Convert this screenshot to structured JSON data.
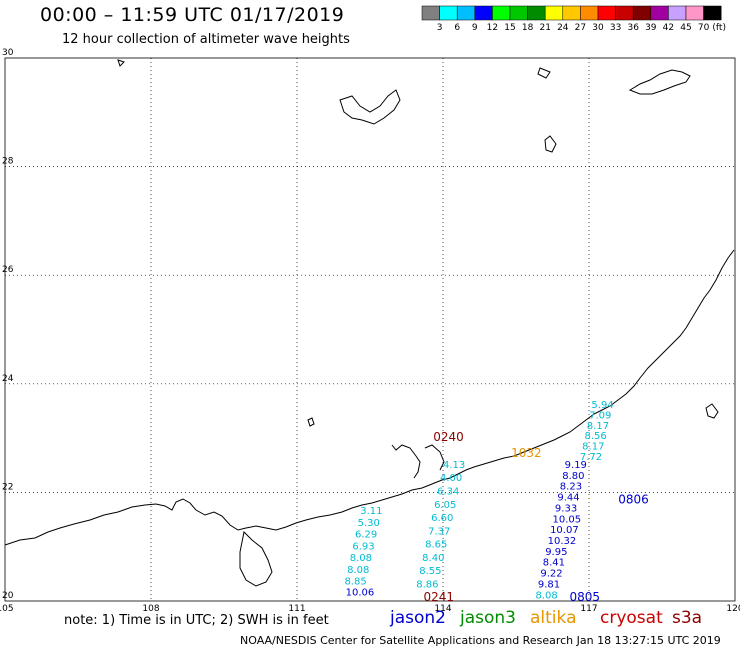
{
  "header": {
    "title": "00:00 – 11:59 UTC 01/17/2019",
    "subtitle": "12 hour collection of altimeter wave heights"
  },
  "legend": {
    "unit": "(ft)",
    "bins": [
      {
        "label": "3",
        "color": "#808080"
      },
      {
        "label": "6",
        "color": "#00ffff"
      },
      {
        "label": "9",
        "color": "#00bfff"
      },
      {
        "label": "12",
        "color": "#0000ff"
      },
      {
        "label": "15",
        "color": "#00ff00"
      },
      {
        "label": "18",
        "color": "#00c800"
      },
      {
        "label": "21",
        "color": "#008c00"
      },
      {
        "label": "24",
        "color": "#ffff00"
      },
      {
        "label": "27",
        "color": "#ffc800"
      },
      {
        "label": "30",
        "color": "#ff8c00"
      },
      {
        "label": "33",
        "color": "#ff0000"
      },
      {
        "label": "36",
        "color": "#c80000"
      },
      {
        "label": "39",
        "color": "#800000"
      },
      {
        "label": "42",
        "color": "#a000a0"
      },
      {
        "label": "45",
        "color": "#c8a0ff"
      },
      {
        "label": "70",
        "color": "#ff96c8"
      },
      {
        "label": "",
        "color": "#000000"
      }
    ]
  },
  "axes": {
    "lon_labels": [
      "105",
      "108",
      "111",
      "114",
      "117",
      "120"
    ],
    "lat_labels": [
      "20",
      "22",
      "24",
      "26",
      "28",
      "30"
    ]
  },
  "passes": [
    {
      "time": "0240",
      "color": "#8b0000",
      "lon": 113.8,
      "lat": 22.95
    },
    {
      "time": "0241",
      "color": "#8b0000",
      "lon": 113.6,
      "lat": 20.0
    },
    {
      "time": "0806",
      "color": "#0000cd",
      "lon": 117.6,
      "lat": 21.8
    },
    {
      "time": "0805",
      "color": "#0000cd",
      "lon": 116.6,
      "lat": 20.0
    },
    {
      "time": "1032",
      "color": "#e69500",
      "lon": 115.4,
      "lat": 22.65
    }
  ],
  "tracks": [
    {
      "name": "jason2-west",
      "color": "#00bcd4",
      "values": [
        "3.11",
        "5.30",
        "6.29",
        "6.93",
        "8.08",
        "8.08",
        "8.85"
      ],
      "lon": 112.3,
      "lat_start": 21.6,
      "lat_end": 20.3
    },
    {
      "name": "jason2-west-end",
      "color": "#0000cd",
      "values": [
        "10.06"
      ],
      "lon": 112.0,
      "lat_start": 20.1,
      "lat_end": 20.1
    },
    {
      "name": "altika-mid",
      "color": "#00bcd4",
      "values": [
        "4.13",
        "4.00",
        "6.34",
        "6.05",
        "6.60",
        "7.37",
        "8.65",
        "8.40",
        "8.55",
        "8.86"
      ],
      "lon": 114.0,
      "lat_start": 22.45,
      "lat_end": 20.25
    },
    {
      "name": "jason2-east-cyan",
      "color": "#00bcd4",
      "values": [
        "5.94",
        "7.09",
        "8.17",
        "8.56",
        "8.17",
        "7.72"
      ],
      "lon": 117.05,
      "lat_start": 23.55,
      "lat_end": 22.6
    },
    {
      "name": "jason2-east-blue",
      "color": "#0000cd",
      "values": [
        "9.19",
        "8.80",
        "8.23",
        "9.44",
        "9.33",
        "10.05",
        "10.07",
        "10.32",
        "9.95",
        "8.41",
        "9.22",
        "9.81"
      ],
      "lon": 116.5,
      "lat_start": 22.45,
      "lat_end": 20.25
    },
    {
      "name": "jason2-east-end",
      "color": "#00bcd4",
      "values": [
        "8.08"
      ],
      "lon": 115.9,
      "lat_start": 20.05,
      "lat_end": 20.05
    }
  ],
  "footer": {
    "note": "note: 1) Time is in UTC; 2) SWH is in feet",
    "credit": "NOAA/NESDIS Center for Satellite Applications and Research   Jan 18 13:27:15 UTC 2019"
  },
  "satellites": [
    {
      "name": "jason2",
      "color": "#0000cd"
    },
    {
      "name": "jason3",
      "color": "#008c00"
    },
    {
      "name": "altika",
      "color": "#e69500"
    },
    {
      "name": "cryosat",
      "color": "#cc0000"
    },
    {
      "name": "s3a",
      "color": "#8b0000"
    }
  ]
}
